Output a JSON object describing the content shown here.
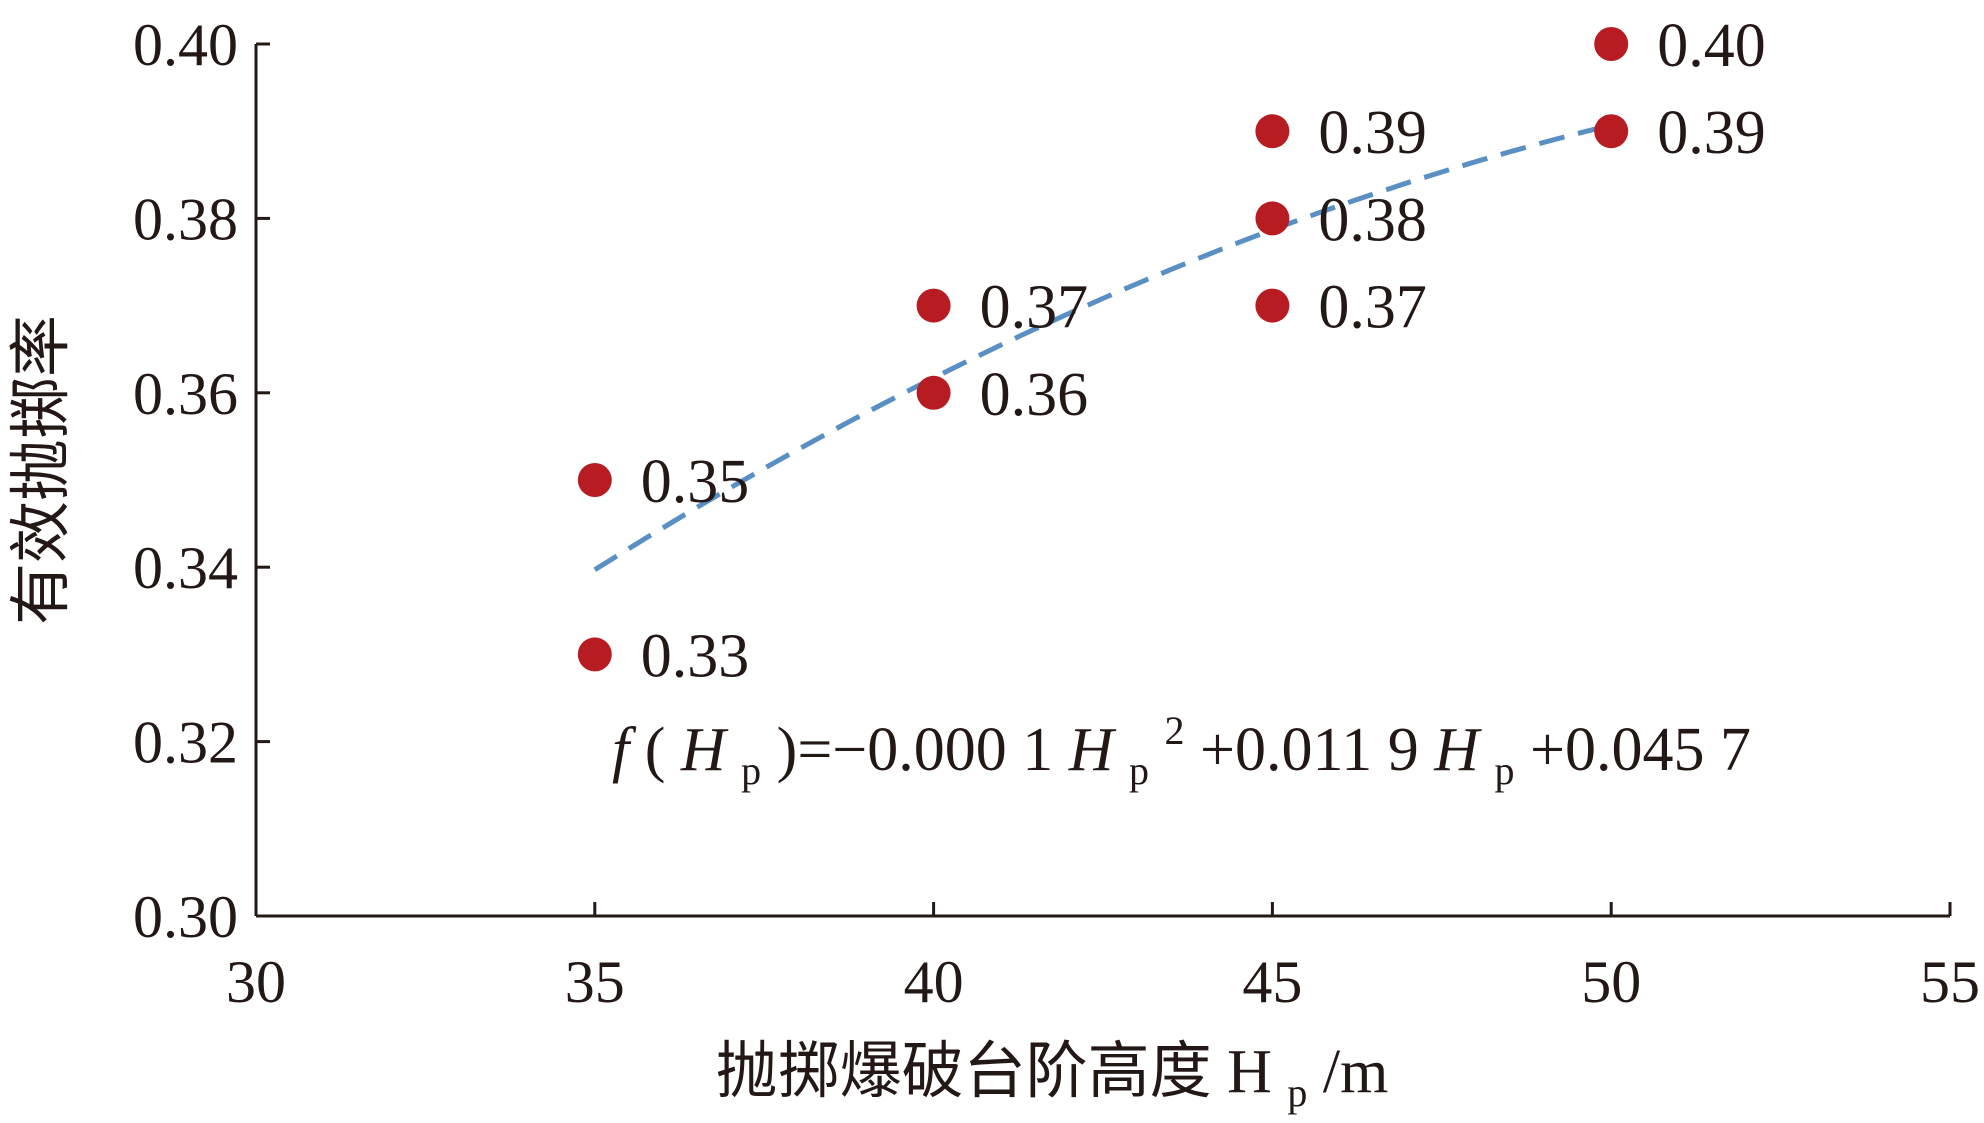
{
  "chart_data": {
    "type": "scatter",
    "title": "",
    "xlabel": {
      "main": "抛掷爆破台阶高度",
      "var": "H",
      "sub": "p",
      "unit": "/m"
    },
    "ylabel": "有效抛掷率",
    "xlim": [
      30,
      55
    ],
    "ylim": [
      0.3,
      0.4
    ],
    "xticks": [
      "30",
      "35",
      "40",
      "45",
      "50",
      "55"
    ],
    "yticks": [
      "0.30",
      "0.32",
      "0.34",
      "0.36",
      "0.38",
      "0.40"
    ],
    "grid": false,
    "legend": false,
    "points": [
      {
        "x": 35,
        "y": 0.35,
        "label": "0.35"
      },
      {
        "x": 35,
        "y": 0.33,
        "label": "0.33"
      },
      {
        "x": 40,
        "y": 0.37,
        "label": "0.37"
      },
      {
        "x": 40,
        "y": 0.36,
        "label": "0.36"
      },
      {
        "x": 45,
        "y": 0.39,
        "label": "0.39"
      },
      {
        "x": 45,
        "y": 0.38,
        "label": "0.38"
      },
      {
        "x": 45,
        "y": 0.37,
        "label": "0.37"
      },
      {
        "x": 50,
        "y": 0.4,
        "label": "0.40"
      },
      {
        "x": 50,
        "y": 0.39,
        "label": "0.39"
      }
    ],
    "fit": {
      "type": "quadratic",
      "a": -0.0001,
      "b": 0.0119,
      "c": 0.0457,
      "x_range": [
        35,
        50
      ],
      "equation": {
        "f": "f",
        "open": "(",
        "var": "H",
        "sub": "p",
        "mid1": ")=−0.000 1",
        "sup": "2",
        "mid2": "+0.011 9",
        "end": "+0.045 7"
      }
    },
    "colors": {
      "points": "#b71c22",
      "fit": "#5a8fc4",
      "axis": "#231815"
    }
  }
}
